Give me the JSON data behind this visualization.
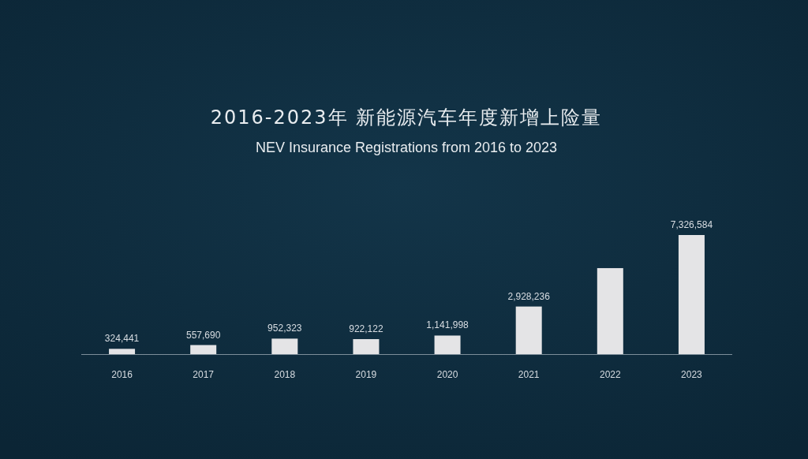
{
  "chart_data": {
    "type": "bar",
    "title": "2016-2023年 新能源汽车年度新增上险量",
    "subtitle": "NEV Insurance Registrations from 2016 to 2023",
    "categories": [
      "2016",
      "2017",
      "2018",
      "2019",
      "2020",
      "2021",
      "2022",
      "2023"
    ],
    "values": [
      324441,
      557690,
      952323,
      922122,
      1141998,
      2928236,
      5290000,
      7326584
    ],
    "value_labels": [
      "324,441",
      "557,690",
      "952,323",
      "922,122",
      "1,141,998",
      "2,928,236",
      null,
      "7,326,584"
    ],
    "color": "#e4e4e6"
  }
}
